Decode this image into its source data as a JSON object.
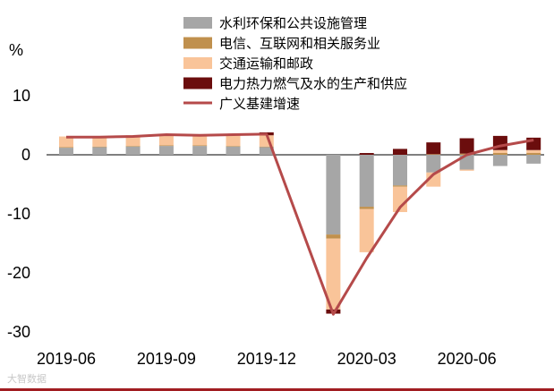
{
  "chart_data": {
    "type": "bar",
    "stacked": true,
    "unit_label": "%",
    "ylim": [
      -30,
      10
    ],
    "yticks": [
      10,
      0,
      -10,
      -20,
      -30
    ],
    "x_tick_labels": [
      "2019-06",
      "2019-09",
      "2019-12",
      "2020-03",
      "2020-06"
    ],
    "x_tick_indices": [
      0,
      3,
      6,
      9,
      12
    ],
    "months": [
      "2019-06",
      "2019-07",
      "2019-08",
      "2019-09",
      "2019-10",
      "2019-11",
      "2019-12",
      "2020-01",
      "2020-02",
      "2020-03",
      "2020-04",
      "2020-05",
      "2020-06",
      "2020-07",
      "2020-08"
    ],
    "series": [
      {
        "name": "水利环保和公共设施管理",
        "color": "#a6a6a6",
        "kind": "bar",
        "values": [
          1.2,
          1.3,
          1.4,
          1.5,
          1.5,
          1.4,
          1.3,
          null,
          -13.5,
          -8.8,
          -5.2,
          -3.0,
          -2.5,
          -1.9,
          -1.5
        ]
      },
      {
        "name": "电信、互联网和相关服务业",
        "color": "#c0904d",
        "kind": "bar",
        "values": [
          0.1,
          0.1,
          0.1,
          0.1,
          0.1,
          0.1,
          0.1,
          null,
          -0.7,
          -0.4,
          -0.2,
          0.1,
          0.2,
          0.3,
          0.3
        ]
      },
      {
        "name": "交通运输和邮政",
        "color": "#f9c499",
        "kind": "bar",
        "values": [
          1.8,
          1.7,
          1.8,
          1.9,
          1.8,
          1.9,
          1.9,
          null,
          -12.0,
          -7.3,
          -4.3,
          -2.4,
          -0.2,
          0.5,
          0.5
        ]
      },
      {
        "name": "电力热力燃气及水的生产和供应",
        "color": "#6b0d0d",
        "kind": "bar",
        "values": [
          0.0,
          0.0,
          0.0,
          0.0,
          0.0,
          0.1,
          0.5,
          null,
          -0.7,
          0.3,
          1.0,
          2.0,
          2.6,
          2.4,
          2.1
        ]
      },
      {
        "name": "广义基建增速",
        "color": "#b54a4a",
        "kind": "line",
        "values": [
          3.0,
          3.0,
          3.1,
          3.4,
          3.3,
          3.4,
          3.5,
          null,
          -27.0,
          -17.5,
          -8.9,
          -3.3,
          0.0,
          1.5,
          2.5
        ]
      }
    ]
  },
  "watermark": "大智数据"
}
